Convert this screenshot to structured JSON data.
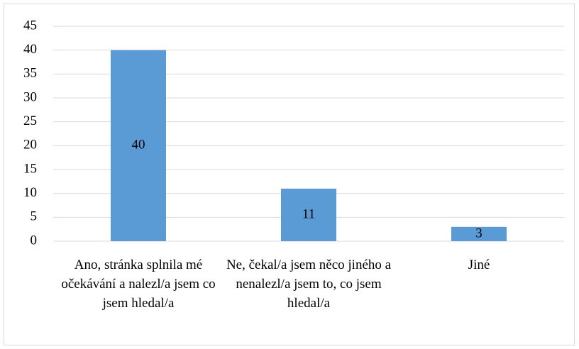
{
  "chart_data": {
    "type": "bar",
    "categories": [
      "Ano, stránka splnila mé očekávání a nalezl/a jsem co jsem hledal/a",
      "Ne, čekal/a jsem něco jiného a nenalezl/a jsem to, co jsem hledal/a",
      "Jiné"
    ],
    "values": [
      40,
      11,
      3
    ],
    "color": "#5b9bd5",
    "ylim": [
      0,
      45
    ],
    "yticks": [
      0,
      5,
      10,
      15,
      20,
      25,
      30,
      35,
      40,
      45
    ],
    "grid": true,
    "data_labels": true
  }
}
